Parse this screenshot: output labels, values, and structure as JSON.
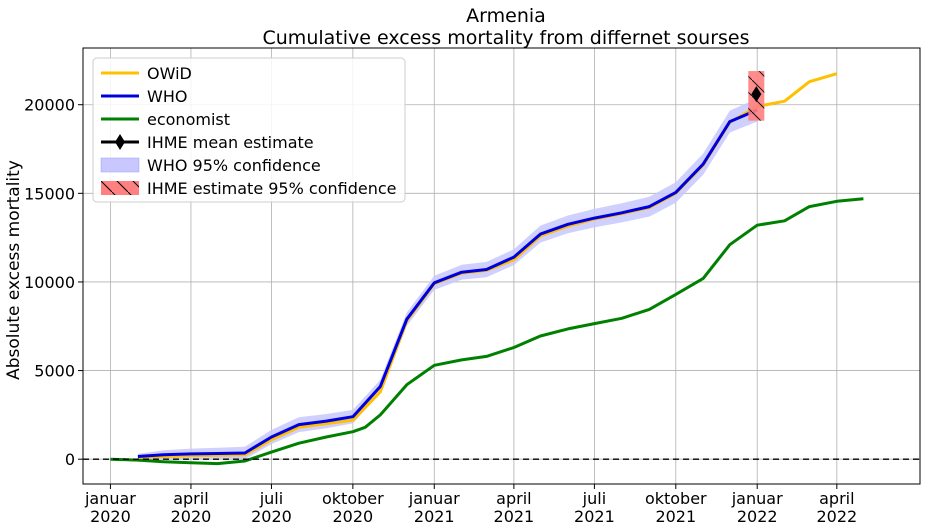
{
  "chart_data": {
    "type": "line",
    "title": "Armenia",
    "subtitle": "Cumulative excess mortality from differnet sourses",
    "xlabel": "",
    "ylabel": "Absolute excess mortality",
    "xlim": [
      "2019-12-01",
      "2022-07-04"
    ],
    "ylim": [
      -1400,
      23200
    ],
    "grid": true,
    "legend_position": "top-left",
    "x_ticks": [
      {
        "date": "2020-01-01",
        "line1": "januar",
        "line2": "2020"
      },
      {
        "date": "2020-04-01",
        "line1": "april",
        "line2": "2020"
      },
      {
        "date": "2020-07-01",
        "line1": "juli",
        "line2": "2020"
      },
      {
        "date": "2020-10-01",
        "line1": "oktober",
        "line2": "2020"
      },
      {
        "date": "2021-01-01",
        "line1": "januar",
        "line2": "2021"
      },
      {
        "date": "2021-04-01",
        "line1": "april",
        "line2": "2021"
      },
      {
        "date": "2021-07-01",
        "line1": "juli",
        "line2": "2021"
      },
      {
        "date": "2021-10-01",
        "line1": "oktober",
        "line2": "2021"
      },
      {
        "date": "2022-01-01",
        "line1": "januar",
        "line2": "2022"
      },
      {
        "date": "2022-04-01",
        "line1": "april",
        "line2": "2022"
      }
    ],
    "y_ticks": [
      0,
      5000,
      10000,
      15000,
      20000
    ],
    "reference_line": {
      "y": 0,
      "style": "dashed",
      "color": "#000000"
    },
    "series": [
      {
        "name": "OWiD",
        "color": "#ffc000",
        "points": [
          [
            "2020-02-01",
            100
          ],
          [
            "2020-03-01",
            150
          ],
          [
            "2020-04-01",
            200
          ],
          [
            "2020-05-01",
            220
          ],
          [
            "2020-06-01",
            250
          ],
          [
            "2020-07-01",
            1100
          ],
          [
            "2020-08-01",
            1800
          ],
          [
            "2020-09-01",
            2000
          ],
          [
            "2020-10-01",
            2200
          ],
          [
            "2020-11-01",
            3800
          ],
          [
            "2020-12-01",
            7800
          ],
          [
            "2021-01-01",
            9900
          ],
          [
            "2021-02-01",
            10500
          ],
          [
            "2021-03-01",
            10650
          ],
          [
            "2021-04-01",
            11250
          ],
          [
            "2021-05-01",
            12600
          ],
          [
            "2021-06-01",
            13150
          ],
          [
            "2021-07-01",
            13550
          ],
          [
            "2021-08-01",
            13850
          ],
          [
            "2021-09-01",
            14200
          ],
          [
            "2021-10-01",
            15000
          ],
          [
            "2021-11-01",
            16600
          ],
          [
            "2021-12-01",
            19000
          ],
          [
            "2022-01-01",
            19900
          ],
          [
            "2022-02-01",
            20200
          ],
          [
            "2022-03-01",
            21300
          ],
          [
            "2022-04-01",
            21750
          ]
        ]
      },
      {
        "name": "WHO",
        "color": "#0000dd",
        "points": [
          [
            "2020-02-01",
            150
          ],
          [
            "2020-03-01",
            250
          ],
          [
            "2020-04-01",
            300
          ],
          [
            "2020-05-01",
            320
          ],
          [
            "2020-06-01",
            350
          ],
          [
            "2020-07-01",
            1250
          ],
          [
            "2020-08-01",
            1950
          ],
          [
            "2020-09-01",
            2150
          ],
          [
            "2020-10-01",
            2400
          ],
          [
            "2020-11-01",
            4100
          ],
          [
            "2020-12-01",
            7900
          ],
          [
            "2021-01-01",
            9950
          ],
          [
            "2021-02-01",
            10550
          ],
          [
            "2021-03-01",
            10700
          ],
          [
            "2021-04-01",
            11400
          ],
          [
            "2021-05-01",
            12700
          ],
          [
            "2021-06-01",
            13250
          ],
          [
            "2021-07-01",
            13600
          ],
          [
            "2021-08-01",
            13900
          ],
          [
            "2021-09-01",
            14250
          ],
          [
            "2021-10-01",
            15050
          ],
          [
            "2021-11-01",
            16650
          ],
          [
            "2021-12-01",
            19050
          ],
          [
            "2022-01-01",
            19700
          ]
        ],
        "ci_halfwidth": [
          150,
          250,
          300,
          320,
          350,
          400,
          420,
          400,
          380,
          380,
          380,
          400,
          420,
          430,
          450,
          480,
          500,
          520,
          540,
          560,
          580,
          600,
          620,
          650
        ]
      },
      {
        "name": "economist",
        "color": "#008000",
        "points": [
          [
            "2020-01-01",
            0
          ],
          [
            "2020-02-01",
            -50
          ],
          [
            "2020-03-01",
            -150
          ],
          [
            "2020-04-01",
            -200
          ],
          [
            "2020-05-01",
            -250
          ],
          [
            "2020-06-01",
            -100
          ],
          [
            "2020-07-01",
            400
          ],
          [
            "2020-08-01",
            900
          ],
          [
            "2020-09-01",
            1250
          ],
          [
            "2020-10-01",
            1550
          ],
          [
            "2020-10-15",
            1800
          ],
          [
            "2020-11-01",
            2500
          ],
          [
            "2020-12-01",
            4200
          ],
          [
            "2021-01-01",
            5300
          ],
          [
            "2021-02-01",
            5600
          ],
          [
            "2021-03-01",
            5800
          ],
          [
            "2021-04-01",
            6300
          ],
          [
            "2021-05-01",
            6950
          ],
          [
            "2021-06-01",
            7350
          ],
          [
            "2021-07-01",
            7650
          ],
          [
            "2021-08-01",
            7950
          ],
          [
            "2021-09-01",
            8450
          ],
          [
            "2021-10-01",
            9300
          ],
          [
            "2021-11-01",
            10200
          ],
          [
            "2021-12-01",
            12100
          ],
          [
            "2022-01-01",
            13200
          ],
          [
            "2022-02-01",
            13450
          ],
          [
            "2022-03-01",
            14250
          ],
          [
            "2022-04-01",
            14550
          ],
          [
            "2022-05-01",
            14700
          ]
        ]
      }
    ],
    "ihme": {
      "mean_label": "IHME mean estimate",
      "ci_label": " IHME estimate 95% confidence",
      "date": "2021-12-31",
      "mean": 20600,
      "low": 19100,
      "high": 21900,
      "color": "#ff8080"
    },
    "legend": [
      {
        "label": "OWiD",
        "kind": "line",
        "color": "#ffc000"
      },
      {
        "label": "WHO",
        "kind": "line",
        "color": "#0000dd"
      },
      {
        "label": "economist",
        "kind": "line",
        "color": "#008000"
      },
      {
        "label": "IHME mean estimate",
        "kind": "marker-line",
        "color": "#000000"
      },
      {
        "label": "WHO 95% confidence",
        "kind": "patch",
        "color": "#c8c8ff"
      },
      {
        "label": " IHME estimate 95% confidence",
        "kind": "hatch-patch",
        "color": "#ff9999"
      }
    ]
  }
}
